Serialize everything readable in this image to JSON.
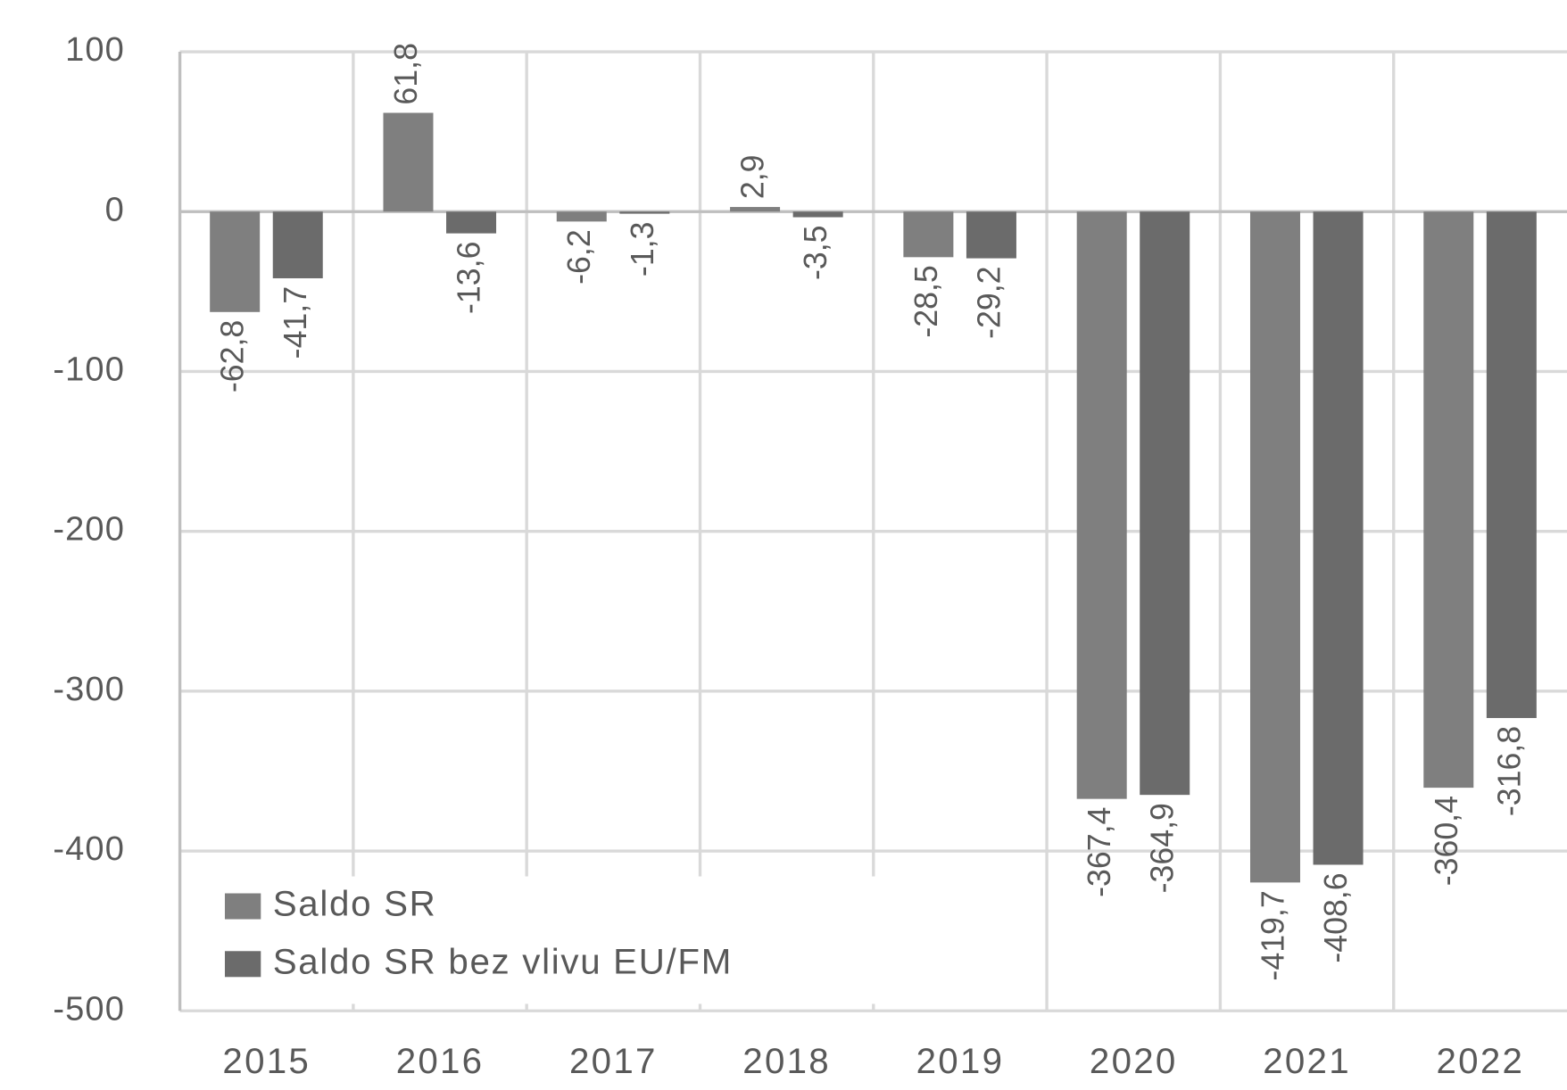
{
  "chart_data": {
    "type": "bar",
    "categories": [
      "2015",
      "2016",
      "2017",
      "2018",
      "2019",
      "2020",
      "2021",
      "2022"
    ],
    "series": [
      {
        "name": "Saldo SR",
        "color": "#7f7f7f",
        "values": [
          -62.8,
          61.8,
          -6.2,
          2.9,
          -28.5,
          -367.4,
          -419.7,
          -360.4
        ],
        "value_labels": [
          "-62,8",
          "61,8",
          "-6,2",
          "2,9",
          "-28,5",
          "-367,4",
          "-419,7",
          "-360,4"
        ]
      },
      {
        "name": "Saldo SR bez vlivu EU/FM",
        "color": "#6b6b6b",
        "values": [
          -41.7,
          -13.6,
          -1.3,
          -3.5,
          -29.2,
          -364.9,
          -408.6,
          -316.8
        ],
        "value_labels": [
          "-41,7",
          "-13,6",
          "-1,3",
          "-3,5",
          "-29,2",
          "-364,9",
          "-408,6",
          "-316,8"
        ]
      }
    ],
    "ylim": [
      -500,
      100
    ],
    "yticks": [
      -500,
      -400,
      -300,
      -200,
      -100,
      0,
      100
    ],
    "grid": true,
    "legend": "lower left"
  }
}
